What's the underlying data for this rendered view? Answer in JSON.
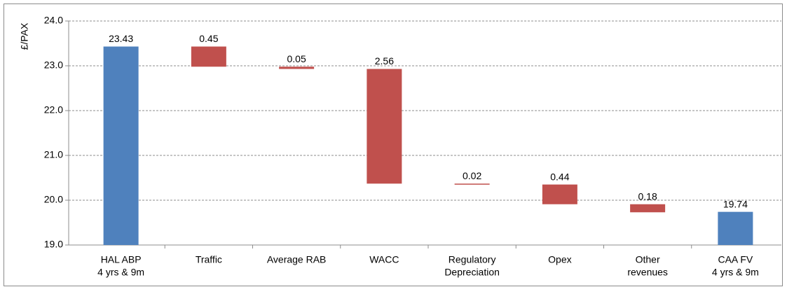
{
  "chart_data": {
    "type": "waterfall",
    "y_label": "£/PAX",
    "categories": [
      [
        "HAL ABP",
        "4 yrs & 9m"
      ],
      [
        "Traffic"
      ],
      [
        "Average RAB"
      ],
      [
        "WACC"
      ],
      [
        "Regulatory",
        "Depreciation"
      ],
      [
        "Opex"
      ],
      [
        "Other",
        "revenues"
      ],
      [
        "CAA FV",
        "4 yrs & 9m"
      ]
    ],
    "values": [
      23.43,
      0.45,
      0.05,
      2.56,
      0.02,
      0.44,
      0.18,
      19.74
    ],
    "total_color": "#4f81bd",
    "change_color": "#c0504d",
    "ylim": [
      19,
      24
    ],
    "yticks": [
      {
        "value": 19,
        "label": "19.0"
      },
      {
        "value": 20,
        "label": "20.0"
      },
      {
        "value": 21,
        "label": "21.0"
      },
      {
        "value": 22,
        "label": "22.0"
      },
      {
        "value": 23,
        "label": "23.0"
      },
      {
        "value": 24,
        "label": "24.0"
      }
    ],
    "grid": true
  }
}
